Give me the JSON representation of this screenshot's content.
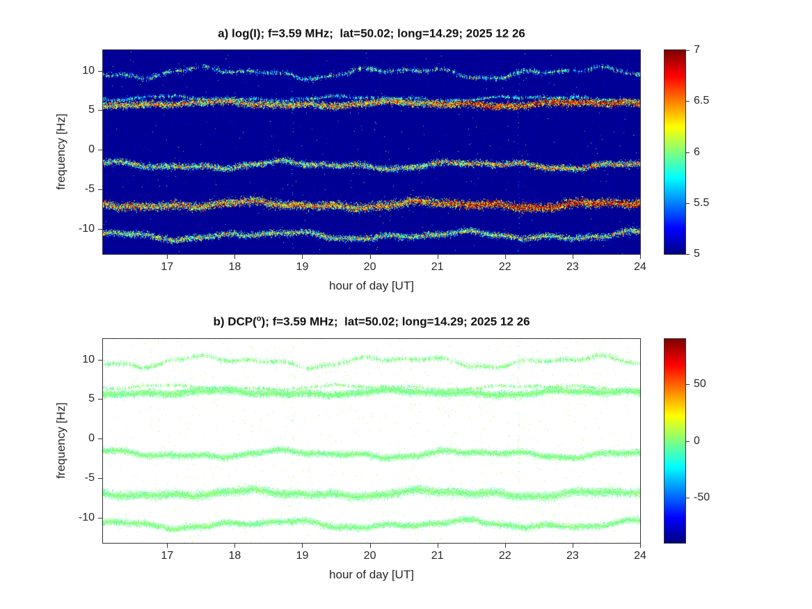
{
  "figure": {
    "background": "#ffffff",
    "axis_color": "#333333",
    "text_color": "#262626",
    "title_color": "#111111"
  },
  "chart_data": [
    {
      "type": "heatmap",
      "id": "a",
      "title_pre": "a) log(I); f=3.59 MHz;  lat=50.02; long=14.29; 2025 12 26",
      "title_sup": "",
      "title_post": "",
      "xlabel": "hour of day [UT]",
      "ylabel": "frequency [Hz]",
      "params": {
        "f_MHz": 3.59,
        "lat": 50.02,
        "long": 14.29,
        "date": "2025 12 26"
      },
      "xlim": [
        16.05,
        24
      ],
      "ylim": [
        -13.2,
        12.6
      ],
      "xticks": [
        17,
        18,
        19,
        20,
        21,
        22,
        23,
        24
      ],
      "yticks": [
        10,
        5,
        0,
        -5,
        -10
      ],
      "grid": false,
      "colormap": "jet",
      "clim": [
        5,
        7
      ],
      "colorbar_ticks": [
        7,
        6.5,
        6,
        5.5,
        5
      ],
      "background_value": 5.04,
      "seed": 101,
      "noise": {
        "density": 0.05,
        "value": 5.0,
        "jitter": 0.22,
        "bright_density": 0.0012,
        "bright_value": 5.55,
        "bright_jitter": 0.45
      },
      "vertical_streaks": [
        {
          "x": 18.85,
          "density": 0.1,
          "value": 5.5,
          "jitter": 0.25
        },
        {
          "x": 22.2,
          "density": 0.2,
          "value": 5.45,
          "jitter": 0.2
        }
      ],
      "bands": [
        {
          "freq": 9.8,
          "amp": 0.5,
          "spread": 0.38,
          "density": 0.45,
          "value": 5.75,
          "jitter": 0.45,
          "gap": 0.35
        },
        {
          "freq": 6.55,
          "amp": 0.2,
          "spread": 0.28,
          "density": 0.3,
          "value": 5.7,
          "jitter": 0.35,
          "gap": 0.45
        },
        {
          "freq": 5.85,
          "amp": 0.22,
          "spread": 0.5,
          "density": 1.0,
          "value": 6.3,
          "jitter": 0.5,
          "late_boost": 0.35
        },
        {
          "freq": -1.9,
          "amp": 0.32,
          "spread": 0.45,
          "density": 0.85,
          "value": 6.0,
          "jitter": 0.5,
          "late_boost": 0.2
        },
        {
          "freq": -6.9,
          "amp": 0.3,
          "spread": 0.6,
          "density": 1.0,
          "value": 6.35,
          "jitter": 0.5,
          "late_boost": 0.35
        },
        {
          "freq": -10.8,
          "amp": 0.35,
          "spread": 0.45,
          "density": 0.8,
          "value": 6.0,
          "jitter": 0.5
        }
      ]
    },
    {
      "type": "heatmap",
      "id": "b",
      "title_pre": "b) DCP(",
      "title_sup": "o",
      "title_post": "); f=3.59 MHz;  lat=50.02; long=14.29; 2025 12 26",
      "xlabel": "hour of day [UT]",
      "ylabel": "frequency [Hz]",
      "params": {
        "f_MHz": 3.59,
        "lat": 50.02,
        "long": 14.29,
        "date": "2025 12 26"
      },
      "xlim": [
        16.05,
        24
      ],
      "ylim": [
        -13.2,
        12.6
      ],
      "xticks": [
        17,
        18,
        19,
        20,
        21,
        22,
        23,
        24
      ],
      "yticks": [
        10,
        5,
        0,
        -5,
        -10
      ],
      "grid": false,
      "colormap": "jet",
      "clim": [
        -90,
        90
      ],
      "colorbar_ticks": [
        50,
        0,
        -50
      ],
      "background_value": null,
      "seed": 202,
      "noise": {
        "density": 0.004,
        "value": 0,
        "jitter": 8,
        "bright_density": 0.0004,
        "bright_value": 0,
        "bright_jitter": 12
      },
      "vertical_streaks": [
        {
          "x": 18.85,
          "density": 0.06,
          "value": 0,
          "jitter": 6
        },
        {
          "x": 22.2,
          "density": 0.12,
          "value": 0,
          "jitter": 6
        }
      ],
      "bands": [
        {
          "freq": 9.8,
          "amp": 0.5,
          "spread": 0.38,
          "density": 0.4,
          "value": 0,
          "jitter": 6,
          "gap": 0.4
        },
        {
          "freq": 6.55,
          "amp": 0.2,
          "spread": 0.25,
          "density": 0.25,
          "value": 0,
          "jitter": 6,
          "gap": 0.5
        },
        {
          "freq": 5.85,
          "amp": 0.22,
          "spread": 0.5,
          "density": 1.0,
          "value": 0,
          "jitter": 6
        },
        {
          "freq": -1.9,
          "amp": 0.32,
          "spread": 0.45,
          "density": 0.8,
          "value": 0,
          "jitter": 6
        },
        {
          "freq": -6.9,
          "amp": 0.3,
          "spread": 0.6,
          "density": 1.0,
          "value": 0,
          "jitter": 6
        },
        {
          "freq": -10.8,
          "amp": 0.35,
          "spread": 0.45,
          "density": 0.75,
          "value": 0,
          "jitter": 6
        }
      ]
    }
  ]
}
